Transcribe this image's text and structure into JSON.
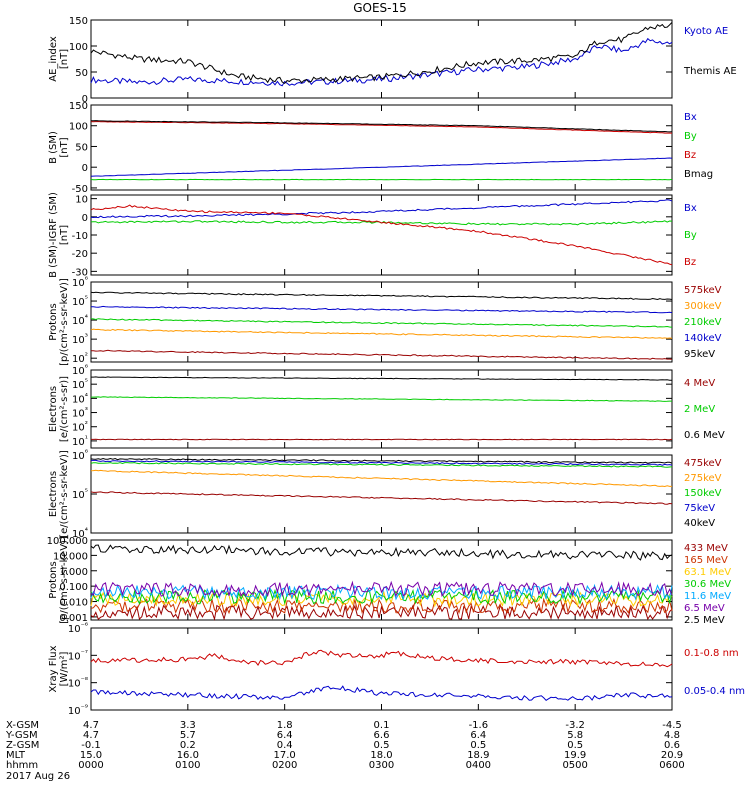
{
  "title": "GOES-15",
  "time_axis": {
    "date": "2017 Aug 26",
    "row_labels": [
      "X-GSM",
      "Y-GSM",
      "Z-GSM",
      "MLT",
      "hhmm"
    ],
    "ticks": [
      {
        "X-GSM": "4.7",
        "Y-GSM": "4.7",
        "Z-GSM": "-0.1",
        "MLT": "15.0",
        "hhmm": "0000"
      },
      {
        "X-GSM": "3.3",
        "Y-GSM": "5.7",
        "Z-GSM": "0.2",
        "MLT": "16.0",
        "hhmm": "0100"
      },
      {
        "X-GSM": "1.8",
        "Y-GSM": "6.4",
        "Z-GSM": "0.4",
        "MLT": "17.0",
        "hhmm": "0200"
      },
      {
        "X-GSM": "0.1",
        "Y-GSM": "6.6",
        "Z-GSM": "0.5",
        "MLT": "18.0",
        "hhmm": "0300"
      },
      {
        "X-GSM": "-1.6",
        "Y-GSM": "6.4",
        "Z-GSM": "0.5",
        "MLT": "18.9",
        "hhmm": "0400"
      },
      {
        "X-GSM": "-3.2",
        "Y-GSM": "5.8",
        "Z-GSM": "0.5",
        "MLT": "19.9",
        "hhmm": "0500"
      },
      {
        "X-GSM": "-4.5",
        "Y-GSM": "4.8",
        "Z-GSM": "0.6",
        "MLT": "20.9",
        "hhmm": "0600"
      }
    ]
  },
  "chart_data": [
    {
      "type": "line",
      "ylabel": [
        "AE_index",
        "[nT]"
      ],
      "ylim": [
        0,
        150
      ],
      "ytick_labels": [
        "150",
        "100",
        "50",
        "0"
      ],
      "series": [
        {
          "name": "Kyoto AE",
          "color": "#0000cc",
          "x": [
            0,
            0.5,
            1,
            1.5,
            2,
            2.5,
            3,
            3.5,
            4,
            4.5,
            5,
            5.25,
            5.5,
            5.75,
            6
          ],
          "y": [
            35,
            30,
            36,
            32,
            29,
            32,
            36,
            45,
            55,
            60,
            75,
            100,
            90,
            110,
            105
          ]
        },
        {
          "name": "Themis AE",
          "color": "#000000",
          "x": [
            0,
            0.5,
            1,
            1.5,
            2,
            2.5,
            3,
            3.5,
            4,
            4.5,
            5,
            5.25,
            5.5,
            5.75,
            6
          ],
          "y": [
            90,
            75,
            70,
            42,
            33,
            36,
            40,
            52,
            68,
            72,
            80,
            110,
            112,
            135,
            140
          ]
        }
      ]
    },
    {
      "type": "line",
      "ylabel": [
        "B (SM)",
        "[nT]"
      ],
      "ylim": [
        -55,
        150
      ],
      "ytick_labels": [
        "150",
        "100",
        "50",
        "0",
        "-50"
      ],
      "series": [
        {
          "name": "Bx",
          "color": "#0000cc",
          "x": [
            0,
            6
          ],
          "y": [
            -22,
            22
          ]
        },
        {
          "name": "By",
          "color": "#00cc00",
          "x": [
            0,
            6
          ],
          "y": [
            -30,
            -30
          ]
        },
        {
          "name": "Bz",
          "color": "#cc0000",
          "x": [
            0,
            2,
            4,
            6
          ],
          "y": [
            110,
            105,
            97,
            82
          ]
        },
        {
          "name": "Bmag",
          "color": "#000000",
          "x": [
            0,
            2,
            4,
            6
          ],
          "y": [
            112,
            107,
            100,
            85
          ]
        }
      ]
    },
    {
      "type": "line",
      "ylabel": [
        "B (SM)-IGRF (SM)",
        "[nT]"
      ],
      "ylim": [
        -32,
        12
      ],
      "ytick_labels": [
        "10",
        "0",
        "-10",
        "-20",
        "-30"
      ],
      "series": [
        {
          "name": "Bx",
          "color": "#0000cc",
          "x": [
            0,
            1,
            2,
            3,
            4,
            5,
            6
          ],
          "y": [
            0,
            0.5,
            1.5,
            3,
            5,
            7,
            9
          ]
        },
        {
          "name": "By",
          "color": "#00cc00",
          "x": [
            0,
            1,
            2,
            3,
            4,
            5,
            6
          ],
          "y": [
            -3,
            -2.5,
            -3,
            -3,
            -4,
            -4,
            -2.5
          ]
        },
        {
          "name": "Bz",
          "color": "#cc0000",
          "x": [
            0,
            0.4,
            1,
            2,
            3,
            4,
            5,
            6
          ],
          "y": [
            4,
            6,
            3,
            2,
            -3,
            -8,
            -16,
            -26
          ]
        }
      ]
    },
    {
      "type": "line",
      "yscale": "log",
      "ylabel": [
        "Protons",
        "[p/(cm²-s-sr-keV)]"
      ],
      "ylim_exp": [
        1.8,
        6
      ],
      "ytick_exponents": [
        2,
        3,
        4,
        5,
        6
      ],
      "series": [
        {
          "name": "575keV",
          "color": "#990000",
          "x": [
            0,
            6
          ],
          "y_log10": [
            2.4,
            1.95
          ]
        },
        {
          "name": "300keV",
          "color": "#ff9900",
          "x": [
            0,
            6
          ],
          "y_log10": [
            3.5,
            3.05
          ]
        },
        {
          "name": "210keV",
          "color": "#00cc00",
          "x": [
            0,
            6
          ],
          "y_log10": [
            4.05,
            3.65
          ]
        },
        {
          "name": "140keV",
          "color": "#0000cc",
          "x": [
            0,
            6
          ],
          "y_log10": [
            4.7,
            4.4
          ]
        },
        {
          "name": "95keV",
          "color": "#000000",
          "x": [
            0,
            6
          ],
          "y_log10": [
            5.45,
            5.1
          ]
        }
      ]
    },
    {
      "type": "line",
      "yscale": "log",
      "ylabel": [
        "Electrons",
        "[e/(cm²-s-sr)]"
      ],
      "ylim_exp": [
        0.5,
        6
      ],
      "ytick_exponents": [
        1,
        2,
        3,
        4,
        5,
        6
      ],
      "series": [
        {
          "name": "4 MeV",
          "color": "#990000",
          "x": [
            0,
            6
          ],
          "y_log10": [
            1.1,
            1.1
          ]
        },
        {
          "name": "2 MeV",
          "color": "#00cc00",
          "x": [
            0,
            6
          ],
          "y_log10": [
            4.1,
            3.8
          ]
        },
        {
          "name": "0.6 MeV",
          "color": "#000000",
          "x": [
            0,
            6
          ],
          "y_log10": [
            5.5,
            5.3
          ]
        }
      ]
    },
    {
      "type": "line",
      "yscale": "log",
      "ylabel": [
        "Electrons",
        "[e/(cm²-s-sr-keV)]"
      ],
      "ylim_exp": [
        4,
        6
      ],
      "ytick_exponents": [
        4,
        5,
        6
      ],
      "series": [
        {
          "name": "475keV",
          "color": "#990000",
          "x": [
            0,
            6
          ],
          "y_log10": [
            5.05,
            4.75
          ]
        },
        {
          "name": "275keV",
          "color": "#ff9900",
          "x": [
            0,
            6
          ],
          "y_log10": [
            5.6,
            5.2
          ]
        },
        {
          "name": "150keV",
          "color": "#00cc00",
          "x": [
            0,
            6
          ],
          "y_log10": [
            5.8,
            5.7
          ]
        },
        {
          "name": "75keV",
          "color": "#0000cc",
          "x": [
            0,
            6
          ],
          "y_log10": [
            5.85,
            5.75
          ]
        },
        {
          "name": "40keV",
          "color": "#000000",
          "x": [
            0,
            6
          ],
          "y_log10": [
            5.9,
            5.8
          ]
        }
      ]
    },
    {
      "type": "line",
      "yscale": "log",
      "ylabel": [
        "Protons",
        "[p/(cm²-s-sr-keV)]"
      ],
      "ylim_exp": [
        -3.2,
        2
      ],
      "ytick_labels": [
        "100.000",
        "10.000",
        "1.000",
        "0.100",
        "0.010",
        "0.001"
      ],
      "series": [
        {
          "name": "433 MeV",
          "color": "#990000",
          "x": [
            0,
            6
          ],
          "y_log10": [
            -2.7,
            -2.7
          ]
        },
        {
          "name": "165 MeV",
          "color": "#cc3300",
          "x": [
            0,
            6
          ],
          "y_log10": [
            -2.3,
            -2.3
          ]
        },
        {
          "name": "63.1 MeV",
          "color": "#ffcc00",
          "x": [
            0,
            6
          ],
          "y_log10": [
            -1.85,
            -1.85
          ]
        },
        {
          "name": "30.6 MeV",
          "color": "#00cc00",
          "x": [
            0,
            6
          ],
          "y_log10": [
            -1.7,
            -1.7
          ]
        },
        {
          "name": "11.6 MeV",
          "color": "#00aaff",
          "x": [
            0,
            6
          ],
          "y_log10": [
            -1.4,
            -1.4
          ]
        },
        {
          "name": "6.5 MeV",
          "color": "#7700aa",
          "x": [
            0,
            6
          ],
          "y_log10": [
            -1.2,
            -1.2
          ]
        },
        {
          "name": "2.5 MeV",
          "color": "#000000",
          "x": [
            0,
            6
          ],
          "y_log10": [
            1.45,
            0.95
          ]
        }
      ]
    },
    {
      "type": "line",
      "yscale": "log",
      "ylabel": [
        "Xray Flux",
        "[W/m²]"
      ],
      "ylim_exp": [
        -9,
        -6
      ],
      "ytick_exponents": [
        -9,
        -8,
        -7,
        -6
      ],
      "ytick_base": "10",
      "series": [
        {
          "name": "0.1-0.8 nm",
          "color": "#cc0000",
          "x": [
            0,
            1,
            1.3,
            1.5,
            2,
            2.3,
            2.6,
            3,
            3.1,
            3.5,
            4,
            5,
            6
          ],
          "y_log10": [
            -7.2,
            -7.15,
            -7.0,
            -7.25,
            -7.3,
            -6.85,
            -7.0,
            -7.05,
            -6.9,
            -7.1,
            -7.2,
            -7.25,
            -7.35
          ]
        },
        {
          "name": "0.05-0.4 nm",
          "color": "#0000cc",
          "x": [
            0,
            1,
            2,
            2.5,
            3,
            4,
            5,
            5.5,
            6
          ],
          "y_log10": [
            -8.35,
            -8.45,
            -8.55,
            -8.15,
            -8.4,
            -8.5,
            -8.6,
            -8.45,
            -8.5
          ]
        }
      ]
    }
  ]
}
